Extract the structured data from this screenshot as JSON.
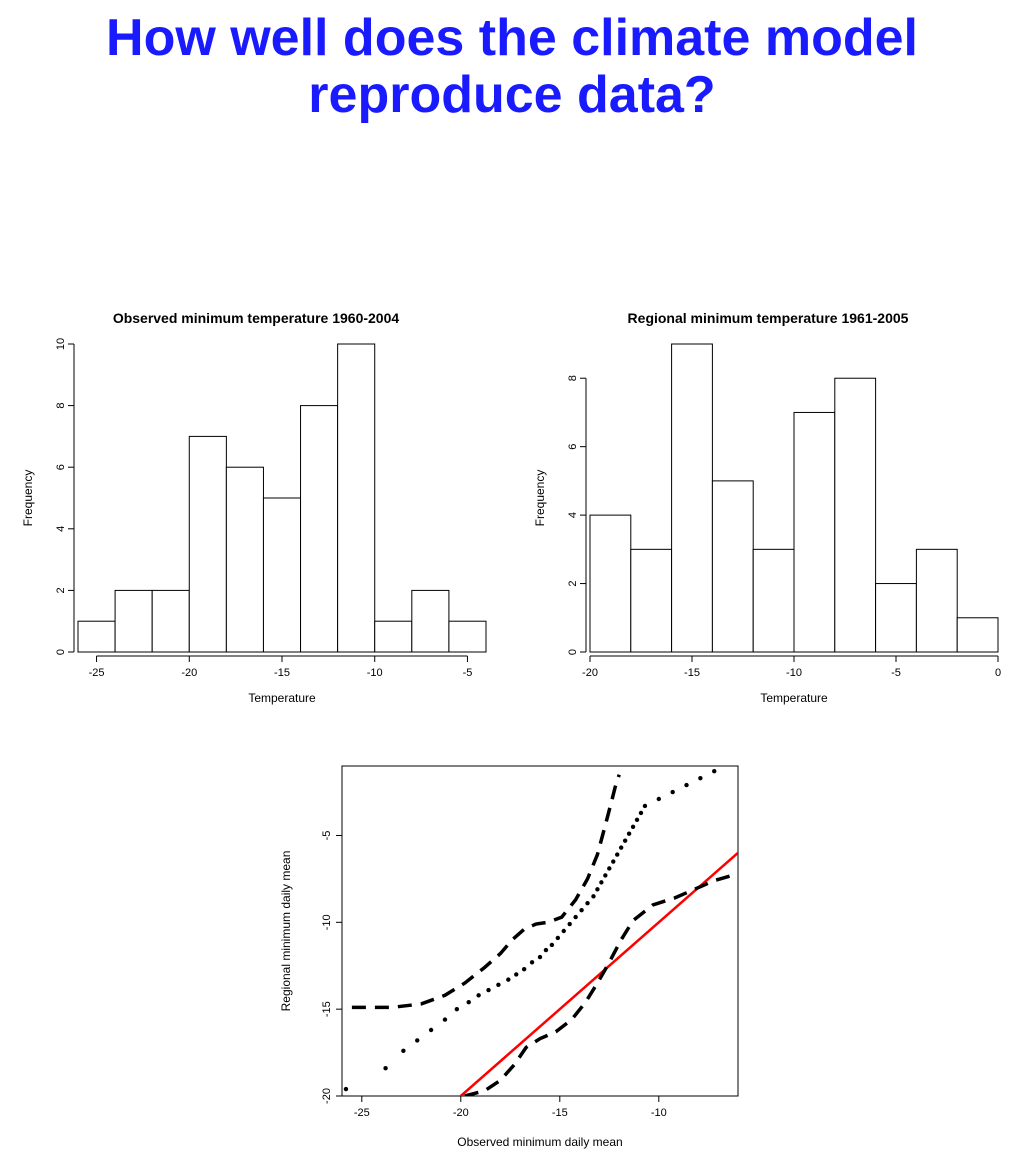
{
  "title": {
    "text": "How well does the climate model reproduce data?",
    "color": "#1a1aff",
    "fontsize": 52
  },
  "hist_left": {
    "type": "histogram",
    "title": "Observed minimum temperature 1960-2004",
    "title_fontsize": 14,
    "xlabel": "Temperature",
    "ylabel": "Frequency",
    "label_fontsize": 12,
    "tick_fontsize": 11,
    "xlim": [
      -26,
      -4
    ],
    "ylim": [
      0,
      10
    ],
    "xticks": [
      -25,
      -20,
      -15,
      -10,
      -5
    ],
    "yticks": [
      0,
      2,
      4,
      6,
      8,
      10
    ],
    "bin_width": 2,
    "bin_start": -26,
    "values": [
      1,
      2,
      2,
      7,
      6,
      5,
      8,
      10,
      1,
      2,
      1
    ],
    "bar_fill": "#ffffff",
    "bar_stroke": "#000000",
    "axis_color": "#000000",
    "background_color": "#ffffff"
  },
  "hist_right": {
    "type": "histogram",
    "title": "Regional minimum temperature 1961-2005",
    "title_fontsize": 14,
    "xlabel": "Temperature",
    "ylabel": "Frequency",
    "label_fontsize": 12,
    "tick_fontsize": 11,
    "xlim": [
      -20,
      0
    ],
    "ylim": [
      0,
      9
    ],
    "xticks": [
      -20,
      -15,
      -10,
      -5,
      0
    ],
    "yticks": [
      0,
      2,
      4,
      6,
      8
    ],
    "bin_width": 2,
    "bin_start": -20,
    "values": [
      4,
      3,
      9,
      5,
      3,
      7,
      8,
      2,
      3,
      1
    ],
    "bar_fill": "#ffffff",
    "bar_stroke": "#000000",
    "axis_color": "#000000",
    "background_color": "#ffffff"
  },
  "scatter": {
    "type": "qqplot",
    "xlabel": "Observed minimum daily mean",
    "ylabel": "Regional minimum daily mean",
    "label_fontsize": 12,
    "tick_fontsize": 11,
    "xlim": [
      -26,
      -6
    ],
    "ylim": [
      -20,
      -1
    ],
    "xticks": [
      -25,
      -20,
      -15,
      -10
    ],
    "yticks": [
      -20,
      -15,
      -10,
      -5
    ],
    "box_stroke": "#000000",
    "background_color": "#ffffff",
    "points": [
      [
        -25.8,
        -19.6
      ],
      [
        -23.8,
        -18.4
      ],
      [
        -22.9,
        -17.4
      ],
      [
        -22.2,
        -16.8
      ],
      [
        -21.5,
        -16.2
      ],
      [
        -20.8,
        -15.6
      ],
      [
        -20.2,
        -15.0
      ],
      [
        -19.6,
        -14.6
      ],
      [
        -19.1,
        -14.2
      ],
      [
        -18.6,
        -13.9
      ],
      [
        -18.1,
        -13.6
      ],
      [
        -17.6,
        -13.3
      ],
      [
        -17.2,
        -13.0
      ],
      [
        -16.8,
        -12.7
      ],
      [
        -16.4,
        -12.3
      ],
      [
        -16.0,
        -12.0
      ],
      [
        -15.7,
        -11.6
      ],
      [
        -15.4,
        -11.3
      ],
      [
        -15.1,
        -10.9
      ],
      [
        -14.8,
        -10.5
      ],
      [
        -14.5,
        -10.1
      ],
      [
        -14.2,
        -9.7
      ],
      [
        -13.9,
        -9.3
      ],
      [
        -13.6,
        -8.9
      ],
      [
        -13.3,
        -8.5
      ],
      [
        -13.1,
        -8.1
      ],
      [
        -12.9,
        -7.7
      ],
      [
        -12.7,
        -7.3
      ],
      [
        -12.5,
        -6.9
      ],
      [
        -12.3,
        -6.5
      ],
      [
        -12.1,
        -6.1
      ],
      [
        -11.9,
        -5.7
      ],
      [
        -11.7,
        -5.3
      ],
      [
        -11.5,
        -4.9
      ],
      [
        -11.3,
        -4.5
      ],
      [
        -11.1,
        -4.1
      ],
      [
        -10.9,
        -3.7
      ],
      [
        -10.7,
        -3.3
      ],
      [
        -10.0,
        -2.9
      ],
      [
        -9.3,
        -2.5
      ],
      [
        -8.6,
        -2.1
      ],
      [
        -7.9,
        -1.7
      ],
      [
        -7.2,
        -1.3
      ]
    ],
    "point_color": "#000000",
    "point_radius": 2.2,
    "upper_band": [
      [
        -25.5,
        -14.9
      ],
      [
        -23.5,
        -14.9
      ],
      [
        -22.0,
        -14.7
      ],
      [
        -20.8,
        -14.2
      ],
      [
        -19.8,
        -13.5
      ],
      [
        -18.8,
        -12.6
      ],
      [
        -18.0,
        -11.8
      ],
      [
        -17.4,
        -11.0
      ],
      [
        -16.8,
        -10.4
      ],
      [
        -16.2,
        -10.1
      ],
      [
        -15.6,
        -10.0
      ],
      [
        -14.9,
        -9.7
      ],
      [
        -14.2,
        -8.7
      ],
      [
        -13.6,
        -7.5
      ],
      [
        -13.1,
        -6.1
      ],
      [
        -12.7,
        -4.4
      ],
      [
        -12.4,
        -3.1
      ],
      [
        -12.2,
        -2.2
      ],
      [
        -12.0,
        -1.5
      ]
    ],
    "lower_band": [
      [
        -19.8,
        -20.0
      ],
      [
        -18.8,
        -19.7
      ],
      [
        -18.0,
        -19.1
      ],
      [
        -17.3,
        -18.2
      ],
      [
        -16.7,
        -17.2
      ],
      [
        -16.0,
        -16.7
      ],
      [
        -15.2,
        -16.3
      ],
      [
        -14.4,
        -15.6
      ],
      [
        -13.7,
        -14.6
      ],
      [
        -13.1,
        -13.5
      ],
      [
        -12.5,
        -12.3
      ],
      [
        -11.9,
        -11.0
      ],
      [
        -11.3,
        -9.9
      ],
      [
        -10.3,
        -9.0
      ],
      [
        -9.2,
        -8.6
      ],
      [
        -8.2,
        -8.1
      ],
      [
        -7.2,
        -7.6
      ],
      [
        -6.3,
        -7.3
      ]
    ],
    "band_stroke": "#000000",
    "band_width": 3.5,
    "band_dash": "14,9",
    "refline": {
      "x1": -20,
      "y1": -20,
      "x2": -5,
      "y2": -5
    },
    "refline_color": "#ff0000",
    "refline_width": 2.5
  }
}
